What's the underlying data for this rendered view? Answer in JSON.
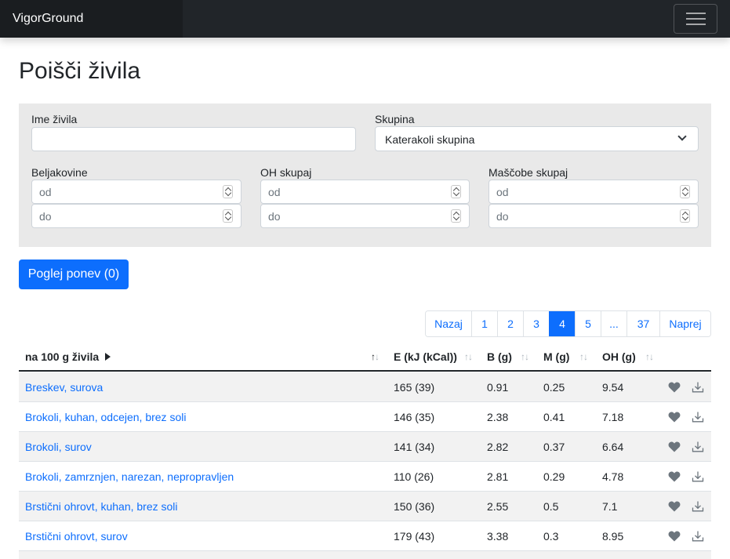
{
  "navbar": {
    "brand": "VigorGround"
  },
  "page": {
    "title": "Poišči živila"
  },
  "filters": {
    "name_label": "Ime živila",
    "group_label": "Skupina",
    "group_value": "Katerakoli skupina",
    "protein_label": "Beljakovine",
    "carbs_label": "OH skupaj",
    "fat_label": "Maščobe skupaj",
    "from_placeholder": "od",
    "to_placeholder": "do"
  },
  "cart_button": "Poglej ponev (0)",
  "pagination": [
    "Nazaj",
    "1",
    "2",
    "3",
    "4",
    "5",
    "...",
    "37",
    "Naprej"
  ],
  "pagination_active": "4",
  "table": {
    "headers": {
      "name": "na 100 g živila",
      "energy": "E (kJ (kCal))",
      "protein": "B (g)",
      "fat": "M (g)",
      "carbs": "OH (g)"
    },
    "rows": [
      {
        "name": "Breskev, surova",
        "energy": "165 (39)",
        "protein": "0.91",
        "fat": "0.25",
        "carbs": "9.54"
      },
      {
        "name": "Brokoli, kuhan, odcejen, brez soli",
        "energy": "146 (35)",
        "protein": "2.38",
        "fat": "0.41",
        "carbs": "7.18"
      },
      {
        "name": "Brokoli, surov",
        "energy": "141 (34)",
        "protein": "2.82",
        "fat": "0.37",
        "carbs": "6.64"
      },
      {
        "name": "Brokoli, zamrznjen, narezan, nepropravljen",
        "energy": "110 (26)",
        "protein": "2.81",
        "fat": "0.29",
        "carbs": "4.78"
      },
      {
        "name": "Brstični ohrovt, kuhan, brez soli",
        "energy": "150 (36)",
        "protein": "2.55",
        "fat": "0.5",
        "carbs": "7.1"
      },
      {
        "name": "Brstični ohrovt, surov",
        "energy": "179 (43)",
        "protein": "3.38",
        "fat": "0.3",
        "carbs": "8.95"
      }
    ]
  },
  "icons": {
    "favorite": "heart-icon",
    "download": "download-icon",
    "menu": "hamburger-icon"
  },
  "colors": {
    "primary": "#0d6efd",
    "navbar": "#212529"
  }
}
